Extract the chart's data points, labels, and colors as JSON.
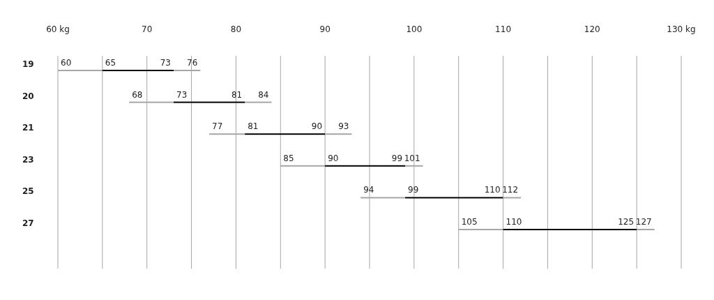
{
  "chart_data": {
    "type": "bar",
    "orientation": "horizontal",
    "categories": [
      "19",
      "20",
      "21",
      "23",
      "25",
      "27"
    ],
    "series": [
      {
        "color": "#a6a6a6",
        "base": [
          60,
          68,
          77,
          85,
          94,
          105
        ],
        "values": [
          5,
          5,
          4,
          5,
          5,
          5
        ]
      },
      {
        "color": "#000000",
        "base": [
          65,
          73,
          81,
          90,
          99,
          110
        ],
        "values": [
          8,
          8,
          9,
          9,
          11,
          15
        ]
      },
      {
        "color": "#a6a6a6",
        "base": [
          73,
          81,
          90,
          99,
          110,
          125
        ],
        "values": [
          3,
          3,
          3,
          2,
          2,
          2
        ]
      }
    ],
    "xlim": [
      60,
      130
    ],
    "xticks": [
      {
        "value": 60,
        "label": "60 kg"
      },
      {
        "value": 65,
        "label": null
      },
      70,
      {
        "value": 75,
        "label": null
      },
      80,
      {
        "value": 85,
        "label": null
      },
      90,
      {
        "value": 95,
        "label": null
      },
      100,
      {
        "value": 105,
        "label": null
      },
      110,
      {
        "value": 115,
        "label": null
      },
      120,
      {
        "value": 125,
        "label": null
      },
      {
        "value": 130,
        "label": "130 kg"
      }
    ],
    "grid": "x",
    "annotations": [
      "60",
      "65",
      "73",
      "76",
      "68",
      "73",
      "81",
      "84",
      "77",
      "81",
      "90",
      "93",
      "85",
      "90",
      "99",
      "101",
      "94",
      "99",
      "110",
      "112",
      "105",
      "110",
      "125",
      "127"
    ]
  }
}
